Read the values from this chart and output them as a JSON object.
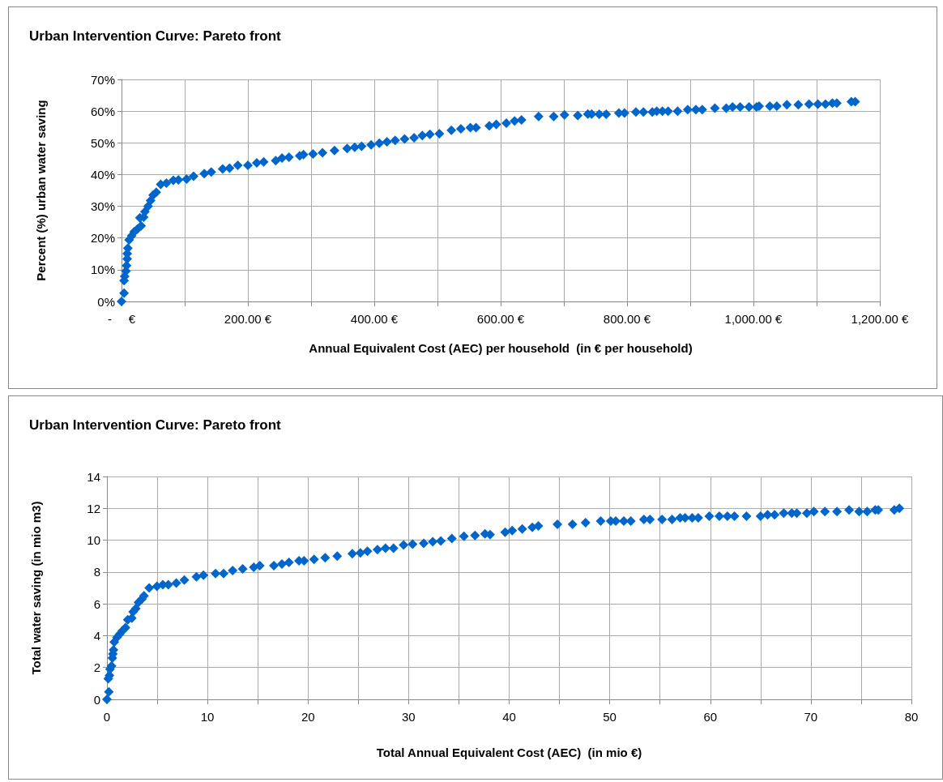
{
  "chart_data": [
    {
      "type": "scatter",
      "title": "Urban Intervention Curve: Pareto front",
      "xlabel": "Annual Equivalent Cost (AEC) per household  (in € per household)",
      "ylabel": "Percent (%) urban water saving",
      "marker": "diamond",
      "grid": true,
      "xlim": [
        0,
        1200
      ],
      "xticks": [
        {
          "value": 0,
          "label": "-     €"
        },
        {
          "value": 100,
          "label": null
        },
        {
          "value": 200,
          "label": "200.00 €"
        },
        {
          "value": 300,
          "label": null
        },
        {
          "value": 400,
          "label": "400.00 €"
        },
        {
          "value": 500,
          "label": null
        },
        {
          "value": 600,
          "label": "600.00 €"
        },
        {
          "value": 700,
          "label": null
        },
        {
          "value": 800,
          "label": "800.00 €"
        },
        {
          "value": 900,
          "label": null
        },
        {
          "value": 1000,
          "label": "1,000.00 €"
        },
        {
          "value": 1100,
          "label": null
        },
        {
          "value": 1200,
          "label": "1,200.00 €"
        }
      ],
      "ylim": [
        0,
        70
      ],
      "yticks": [
        {
          "value": 0,
          "label": "0%"
        },
        {
          "value": 10,
          "label": "10%"
        },
        {
          "value": 20,
          "label": "20%"
        },
        {
          "value": 30,
          "label": "30%"
        },
        {
          "value": 40,
          "label": "40%"
        },
        {
          "value": 50,
          "label": "50%"
        },
        {
          "value": 60,
          "label": "60%"
        },
        {
          "value": 70,
          "label": "70%"
        }
      ],
      "series": [
        {
          "color": "#0066cc",
          "x": [
            0,
            4,
            4,
            5,
            7,
            8,
            9,
            9,
            10,
            12,
            16,
            20,
            25,
            31,
            29,
            35,
            37,
            42,
            46,
            50,
            55,
            62,
            71,
            82,
            90,
            103,
            114,
            131,
            142,
            160,
            171,
            184,
            200,
            214,
            225,
            244,
            254,
            265,
            282,
            288,
            303,
            318,
            337,
            357,
            369,
            380,
            395,
            408,
            420,
            433,
            448,
            463,
            476,
            488,
            503,
            522,
            537,
            552,
            561,
            582,
            593,
            609,
            622,
            633,
            660,
            684,
            701,
            722,
            738,
            744,
            756,
            767,
            787,
            796,
            814,
            826,
            840,
            847,
            856,
            865,
            880,
            896,
            909,
            919,
            939,
            957,
            967,
            979,
            993,
            1005,
            1009,
            1026,
            1037,
            1053,
            1071,
            1088,
            1102,
            1114,
            1125,
            1132,
            1155,
            1161
          ],
          "values": [
            0,
            2.6,
            6.6,
            7.9,
            9.6,
            11.3,
            13.4,
            15.1,
            16.8,
            19.4,
            20.7,
            22,
            22.8,
            23.8,
            26.4,
            26.6,
            28.3,
            30,
            31.8,
            33.5,
            34.4,
            36.9,
            37.3,
            38.2,
            38.3,
            38.6,
            39.5,
            40.3,
            40.8,
            41.8,
            42,
            42.9,
            42.9,
            43.7,
            44,
            44.4,
            45.2,
            45.5,
            45.9,
            46.3,
            46.5,
            46.9,
            47.6,
            48.2,
            48.6,
            48.9,
            49.4,
            49.9,
            50.3,
            50.8,
            51.2,
            51.6,
            52.3,
            52.7,
            52.9,
            54,
            54.4,
            54.8,
            54.8,
            55.4,
            55.8,
            56.2,
            56.9,
            57.2,
            58.3,
            58.3,
            58.8,
            58.6,
            59.1,
            59.1,
            59,
            59,
            59.4,
            59.4,
            59.7,
            59.7,
            59.7,
            60,
            60,
            60,
            60,
            60.5,
            60.5,
            60.5,
            60.9,
            60.9,
            61.3,
            61.3,
            61.3,
            61.3,
            61.6,
            61.6,
            61.6,
            62,
            62,
            62.2,
            62.2,
            62.2,
            62.5,
            62.5,
            63,
            63
          ]
        }
      ]
    },
    {
      "type": "scatter",
      "title": "Urban Intervention Curve: Pareto front",
      "xlabel": "Total Annual Equivalent Cost (AEC)  (in mio €)",
      "ylabel": "Total water saving (in mio m3)",
      "marker": "diamond",
      "grid": true,
      "xlim": [
        0,
        80
      ],
      "xticks": [
        0,
        {
          "value": 5,
          "label": null
        },
        10,
        {
          "value": 15,
          "label": null
        },
        20,
        {
          "value": 25,
          "label": null
        },
        30,
        {
          "value": 35,
          "label": null
        },
        40,
        {
          "value": 45,
          "label": null
        },
        50,
        {
          "value": 55,
          "label": null
        },
        60,
        {
          "value": 65,
          "label": null
        },
        70,
        {
          "value": 75,
          "label": null
        },
        80
      ],
      "ylim": [
        0,
        14
      ],
      "yticks": [
        0,
        2,
        4,
        6,
        8,
        10,
        12,
        14
      ],
      "series": [
        {
          "color": "#0066cc",
          "x": [
            0,
            0.19,
            0.13,
            0.25,
            0.3,
            0.46,
            0.54,
            0.59,
            0.65,
            0.73,
            1,
            1.27,
            1.53,
            1.85,
            2.07,
            2.47,
            2.6,
            2.87,
            3.14,
            3.47,
            3.68,
            4.2,
            4.97,
            5.56,
            6.1,
            6.9,
            7.7,
            8.9,
            9.6,
            10.8,
            11.6,
            12.5,
            13.5,
            14.6,
            15.2,
            16.6,
            17.4,
            18.1,
            19.1,
            19.6,
            20.6,
            21.7,
            22.9,
            24.4,
            25.2,
            25.9,
            26.9,
            27.7,
            28.5,
            29.5,
            30.4,
            31.5,
            32.4,
            33.2,
            34.3,
            35.5,
            36.6,
            37.6,
            38.1,
            39.6,
            40.3,
            41.3,
            42.3,
            42.9,
            44.8,
            46.3,
            47.6,
            49.1,
            50.1,
            50.6,
            51.4,
            52.1,
            53.4,
            54,
            55.2,
            56.2,
            57,
            57.5,
            58.2,
            58.8,
            59.9,
            60.9,
            61.7,
            62.4,
            63.6,
            65,
            65.7,
            66.4,
            67.3,
            68.1,
            68.6,
            69.6,
            70.3,
            71.4,
            72.6,
            73.8,
            74.8,
            75.6,
            76.4,
            76.7,
            78.3,
            78.8
          ],
          "values": [
            0,
            0.47,
            1.3,
            1.5,
            1.9,
            2.1,
            2.6,
            2.85,
            3.1,
            3.6,
            3.9,
            4.1,
            4.3,
            4.5,
            5,
            5.1,
            5.5,
            5.7,
            6.1,
            6.3,
            6.5,
            7,
            7.1,
            7.2,
            7.2,
            7.3,
            7.5,
            7.7,
            7.8,
            7.9,
            7.9,
            8.1,
            8.2,
            8.3,
            8.4,
            8.4,
            8.5,
            8.6,
            8.7,
            8.7,
            8.8,
            8.9,
            9,
            9.15,
            9.2,
            9.3,
            9.4,
            9.5,
            9.5,
            9.7,
            9.75,
            9.8,
            9.9,
            9.95,
            10.1,
            10.25,
            10.3,
            10.4,
            10.35,
            10.5,
            10.6,
            10.7,
            10.8,
            10.9,
            11,
            11,
            11.1,
            11.2,
            11.2,
            11.2,
            11.2,
            11.2,
            11.3,
            11.3,
            11.3,
            11.3,
            11.4,
            11.4,
            11.4,
            11.4,
            11.5,
            11.5,
            11.5,
            11.5,
            11.5,
            11.5,
            11.6,
            11.6,
            11.7,
            11.7,
            11.7,
            11.7,
            11.8,
            11.8,
            11.8,
            11.9,
            11.8,
            11.8,
            11.9,
            11.9,
            11.9,
            12
          ]
        }
      ]
    }
  ]
}
